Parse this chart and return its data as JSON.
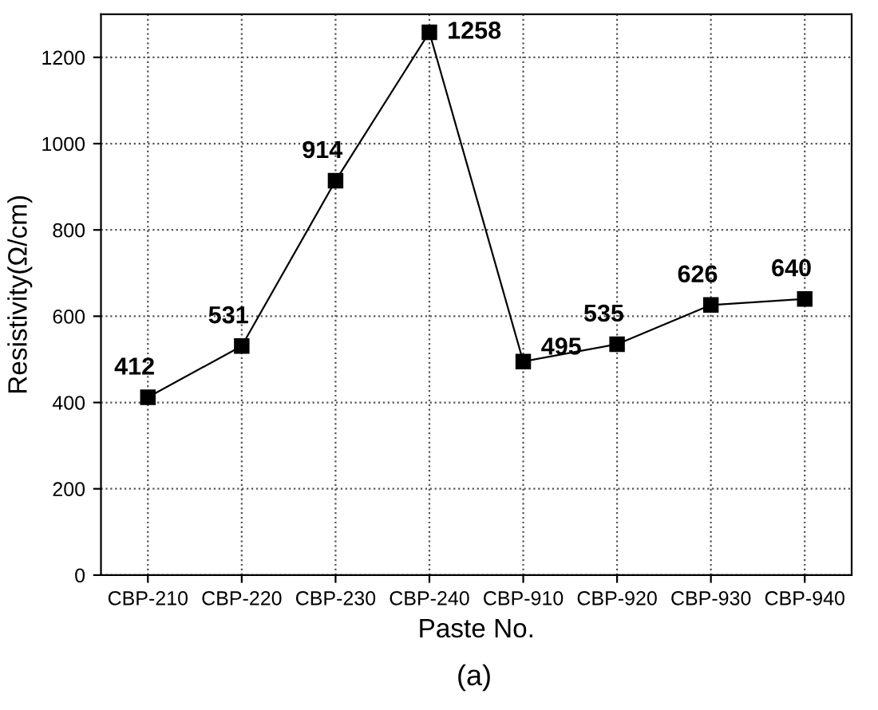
{
  "chart_data": {
    "type": "line",
    "xlabel": "Paste No.",
    "ylabel": "Resistivity(Ω/cm)",
    "categories": [
      "CBP-210",
      "CBP-220",
      "CBP-230",
      "CBP-240",
      "CBP-910",
      "CBP-920",
      "CBP-930",
      "CBP-940"
    ],
    "series": [
      {
        "color": "#000000",
        "values": [
          412,
          531,
          914,
          1258,
          495,
          535,
          626,
          640
        ]
      }
    ],
    "ylim": [
      0,
      1300
    ],
    "yticks": [
      0,
      200,
      400,
      600,
      800,
      1000,
      1200
    ],
    "grid": true,
    "marker": "square",
    "line_style": "solid",
    "data_labels": true,
    "legend": false,
    "annotations": [
      "(a)"
    ]
  }
}
